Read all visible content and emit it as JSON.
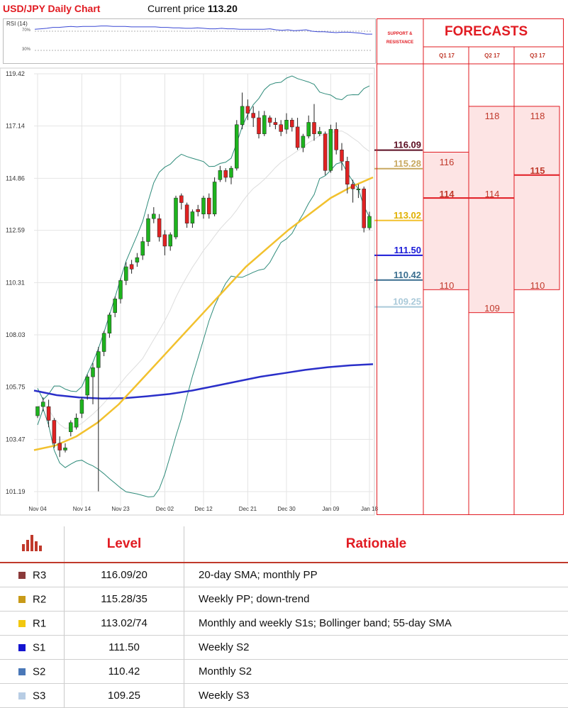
{
  "header": {
    "title": "USD/JPY Daily Chart",
    "price_label": "Current price",
    "price_value": "113.20"
  },
  "rsi": {
    "title": "RSI (14)",
    "upper": "70%",
    "lower": "30%",
    "values": [
      74,
      75,
      76,
      78,
      78,
      79,
      80,
      79,
      80,
      80,
      80,
      81,
      81,
      80,
      80,
      80,
      79,
      79,
      79,
      79,
      79,
      78,
      78,
      77,
      77,
      76,
      76,
      77,
      76,
      75,
      75,
      76,
      75,
      75,
      74,
      74,
      74,
      74,
      74,
      75,
      73,
      72,
      73,
      71,
      72,
      73,
      70,
      69,
      69,
      68,
      67,
      68,
      68,
      67,
      66,
      64,
      64
    ]
  },
  "chart_data": {
    "type": "candlestick",
    "title": "USD/JPY Daily Chart",
    "y_ticks": [
      "119.42",
      "117.14",
      "114.86",
      "112.59",
      "110.31",
      "108.03",
      "105.75",
      "103.47",
      "101.19"
    ],
    "ylim": [
      101.19,
      119.42
    ],
    "x_ticks": [
      "Nov 04",
      "Nov 14",
      "Nov 23",
      "Dec 02",
      "Dec 12",
      "Dec 21",
      "Dec 30",
      "Jan 09",
      "Jan 18"
    ],
    "grid": true,
    "candles": [
      [
        104.5,
        104.9,
        104.8,
        104.4
      ],
      [
        104.9,
        105.1,
        105.3,
        104.7
      ],
      [
        104.9,
        104.3,
        105.2,
        104.0
      ],
      [
        104.3,
        103.3,
        104.4,
        103.1
      ],
      [
        103.3,
        103.0,
        103.6,
        102.7
      ],
      [
        103.0,
        103.1,
        103.3,
        102.9
      ],
      [
        103.8,
        104.2,
        104.3,
        103.6
      ],
      [
        104.0,
        104.4,
        104.6,
        103.9
      ],
      [
        104.6,
        105.2,
        105.3,
        104.4
      ],
      [
        105.4,
        106.2,
        106.3,
        105.2
      ],
      [
        106.2,
        106.6,
        106.8,
        105.0
      ],
      [
        106.6,
        107.3,
        107.5,
        101.2
      ],
      [
        107.3,
        108.1,
        108.2,
        107.1
      ],
      [
        108.1,
        108.9,
        109.0,
        107.9
      ],
      [
        109.0,
        109.6,
        109.7,
        108.8
      ],
      [
        109.6,
        110.4,
        110.5,
        109.4
      ],
      [
        110.4,
        111.0,
        111.2,
        110.2
      ],
      [
        111.1,
        110.9,
        111.3,
        110.7
      ],
      [
        111.2,
        111.4,
        111.6,
        111.0
      ],
      [
        111.5,
        112.1,
        112.3,
        111.3
      ],
      [
        112.1,
        113.1,
        113.3,
        111.9
      ],
      [
        113.1,
        113.3,
        113.6,
        112.9
      ],
      [
        113.1,
        112.3,
        113.3,
        112.1
      ],
      [
        112.4,
        111.9,
        112.6,
        111.5
      ],
      [
        111.9,
        112.4,
        112.5,
        111.7
      ],
      [
        112.3,
        114.0,
        114.1,
        112.2
      ],
      [
        114.1,
        113.8,
        114.2,
        113.5
      ],
      [
        113.7,
        112.9,
        113.8,
        112.7
      ],
      [
        112.9,
        113.4,
        113.5,
        112.7
      ],
      [
        113.5,
        113.4,
        113.7,
        113.2
      ],
      [
        113.3,
        114.0,
        114.1,
        113.1
      ],
      [
        114.0,
        113.3,
        114.2,
        113.1
      ],
      [
        113.3,
        114.7,
        114.9,
        113.2
      ],
      [
        114.8,
        115.2,
        115.4,
        114.7
      ],
      [
        115.2,
        114.9,
        115.3,
        114.7
      ],
      [
        114.9,
        115.3,
        115.4,
        114.6
      ],
      [
        115.3,
        117.2,
        117.4,
        115.2
      ],
      [
        117.2,
        118.0,
        118.6,
        117.0
      ],
      [
        118.0,
        117.7,
        118.3,
        117.4
      ],
      [
        117.7,
        117.5,
        118.0,
        117.1
      ],
      [
        117.5,
        116.8,
        117.8,
        116.6
      ],
      [
        116.8,
        117.6,
        117.8,
        116.7
      ],
      [
        117.5,
        117.3,
        117.6,
        117.1
      ],
      [
        117.3,
        117.2,
        117.5,
        117.0
      ],
      [
        117.2,
        116.9,
        117.4,
        116.7
      ],
      [
        117.0,
        117.4,
        117.7,
        116.8
      ],
      [
        117.4,
        117.1,
        117.5,
        116.9
      ],
      [
        117.1,
        116.2,
        117.5,
        116.1
      ],
      [
        116.2,
        116.7,
        116.8,
        116.0
      ],
      [
        116.7,
        117.3,
        117.6,
        116.6
      ],
      [
        117.3,
        116.8,
        118.1,
        116.5
      ],
      [
        116.8,
        116.9,
        117.1,
        116.7
      ],
      [
        116.8,
        115.2,
        116.9,
        115.0
      ],
      [
        115.2,
        117.0,
        117.2,
        115.1
      ],
      [
        117.0,
        116.1,
        117.3,
        115.9
      ],
      [
        116.1,
        115.6,
        116.4,
        115.2
      ],
      [
        115.6,
        114.6,
        115.8,
        114.2
      ],
      [
        114.6,
        114.4,
        114.8,
        113.8
      ],
      [
        114.4,
        114.4,
        114.6,
        114.0
      ],
      [
        114.4,
        112.7,
        114.5,
        112.5
      ],
      [
        112.7,
        113.2,
        113.4,
        112.6
      ]
    ],
    "series": [
      {
        "name": "",
        "color": "#2a2fc9",
        "values": [
          105.6,
          105.4,
          105.3,
          105.25,
          105.27,
          105.35,
          105.45,
          105.6,
          105.8,
          106.0,
          106.2,
          106.35,
          106.5,
          106.62,
          106.7,
          106.75
        ]
      },
      {
        "name": "",
        "color": "#f2c12e",
        "values": [
          103.0,
          103.2,
          103.6,
          104.2,
          105.0,
          106.0,
          107.0,
          108.0,
          109.0,
          110.0,
          111.0,
          111.8,
          112.6,
          113.3,
          114.0,
          114.5,
          114.9
        ]
      }
    ],
    "levels": [
      {
        "value": "116.09",
        "color": "#5a0c20",
        "label_color": "#5a0c20"
      },
      {
        "value": "115.28",
        "color": "#c8a860",
        "label_color": "#c8a860"
      },
      {
        "value": "113.02",
        "color": "#f2c12e",
        "label_color": "#e0b000"
      },
      {
        "value": "111.50",
        "color": "#1a1ad8",
        "label_color": "#1a1ad8"
      },
      {
        "value": "110.42",
        "color": "#3a6e8f",
        "label_color": "#3a6e8f"
      },
      {
        "value": "109.25",
        "color": "#a9c9d9",
        "label_color": "#a9c9d9"
      }
    ]
  },
  "forecasts": {
    "title": "FORECASTS",
    "sr_header": "SUPPORT & RESISTANCE",
    "quarters": [
      {
        "label": "Q1 17",
        "high": "116",
        "mid": "114",
        "low": "110"
      },
      {
        "label": "Q2 17",
        "high": "118",
        "mid": "114",
        "low": "109"
      },
      {
        "label": "Q3 17",
        "high": "118",
        "mid": "115",
        "low": "110"
      }
    ]
  },
  "table": {
    "level_header": "Level",
    "rationale_header": "Rationale",
    "rows": [
      {
        "name": "R3",
        "level": "116.09/20",
        "rationale": "20-day SMA; monthly PP",
        "color": "#8b3a3a"
      },
      {
        "name": "R2",
        "level": "115.28/35",
        "rationale": "Weekly PP; down-trend",
        "color": "#c89a18"
      },
      {
        "name": "R1",
        "level": "113.02/74",
        "rationale": "Monthly and weekly S1s; Bollinger band; 55-day SMA",
        "color": "#f2c80f"
      },
      {
        "name": "S1",
        "level": "111.50",
        "rationale": "Weekly S2",
        "color": "#1414d0"
      },
      {
        "name": "S2",
        "level": "110.42",
        "rationale": "Monthly S2",
        "color": "#4a78b8"
      },
      {
        "name": "S3",
        "level": "109.25",
        "rationale": "Weekly S3",
        "color": "#b8cde4"
      }
    ]
  }
}
